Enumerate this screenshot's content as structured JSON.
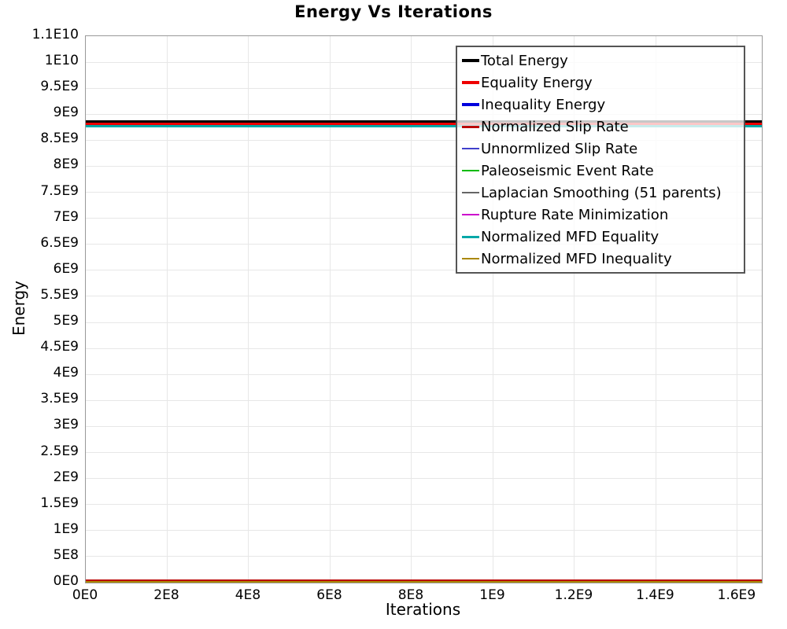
{
  "chart": {
    "title": "Energy Vs Iterations",
    "x_label": "Iterations",
    "y_label": "Energy"
  },
  "chart_data": {
    "type": "line",
    "title": "Energy Vs Iterations",
    "xlabel": "Iterations",
    "ylabel": "Energy",
    "grid": true,
    "legend_position": "top-right",
    "xlim": [
      0,
      1660000000.0
    ],
    "ylim": [
      0,
      10500000000.0
    ],
    "x_ticks": [
      "0E0",
      "2E8",
      "4E8",
      "6E8",
      "8E8",
      "1E9",
      "1.2E9",
      "1.4E9",
      "1.6E9"
    ],
    "y_ticks_top_to_bottom": [
      "1.1E10",
      "1E10",
      "9.5E9",
      "9E9",
      "8.5E9",
      "8E9",
      "7.5E9",
      "7E9",
      "6.5E9",
      "6E9",
      "5.5E9",
      "5E9",
      "4.5E9",
      "4E9",
      "3.5E9",
      "3E9",
      "2.5E9",
      "2E9",
      "1.5E9",
      "1E9",
      "5E8",
      "0E0"
    ],
    "series": [
      {
        "name": "Total Energy",
        "color": "#000000",
        "line_width": 4,
        "x": [
          0,
          1660000000.0
        ],
        "y": [
          8860000000.0,
          8860000000.0
        ]
      },
      {
        "name": "Equality Energy",
        "color": "#ee0000",
        "line_width": 4,
        "x": [
          0,
          1660000000.0
        ],
        "y": [
          8810000000.0,
          8810000000.0
        ]
      },
      {
        "name": "Inequality Energy",
        "color": "#0000dd",
        "line_width": 4,
        "x": [
          0,
          1660000000.0
        ],
        "y": [
          0,
          0
        ]
      },
      {
        "name": "Normalized Slip Rate",
        "color": "#bb0000",
        "line_width": 3,
        "x": [
          0,
          1660000000.0
        ],
        "y": [
          45000000.0,
          45000000.0
        ]
      },
      {
        "name": "Unnormlized Slip Rate",
        "color": "#4040cc",
        "line_width": 2,
        "x": [
          0,
          1660000000.0
        ],
        "y": [
          0,
          0
        ]
      },
      {
        "name": "Paleoseismic Event Rate",
        "color": "#00bb00",
        "line_width": 2,
        "x": [
          0,
          1660000000.0
        ],
        "y": [
          0,
          0
        ]
      },
      {
        "name": "Laplacian Smoothing (51 parents)",
        "color": "#666666",
        "line_width": 2,
        "x": [
          0,
          1660000000.0
        ],
        "y": [
          0,
          0
        ]
      },
      {
        "name": "Rupture Rate Minimization",
        "color": "#cc00cc",
        "line_width": 2,
        "x": [
          0,
          1660000000.0
        ],
        "y": [
          0,
          0
        ]
      },
      {
        "name": "Normalized MFD Equality",
        "color": "#00a8a8",
        "line_width": 3,
        "x": [
          0,
          1660000000.0
        ],
        "y": [
          8770000000.0,
          8770000000.0
        ]
      },
      {
        "name": "Normalized MFD Inequality",
        "color": "#aa8800",
        "line_width": 2,
        "x": [
          0,
          1660000000.0
        ],
        "y": [
          15000000.0,
          15000000.0
        ]
      }
    ]
  }
}
